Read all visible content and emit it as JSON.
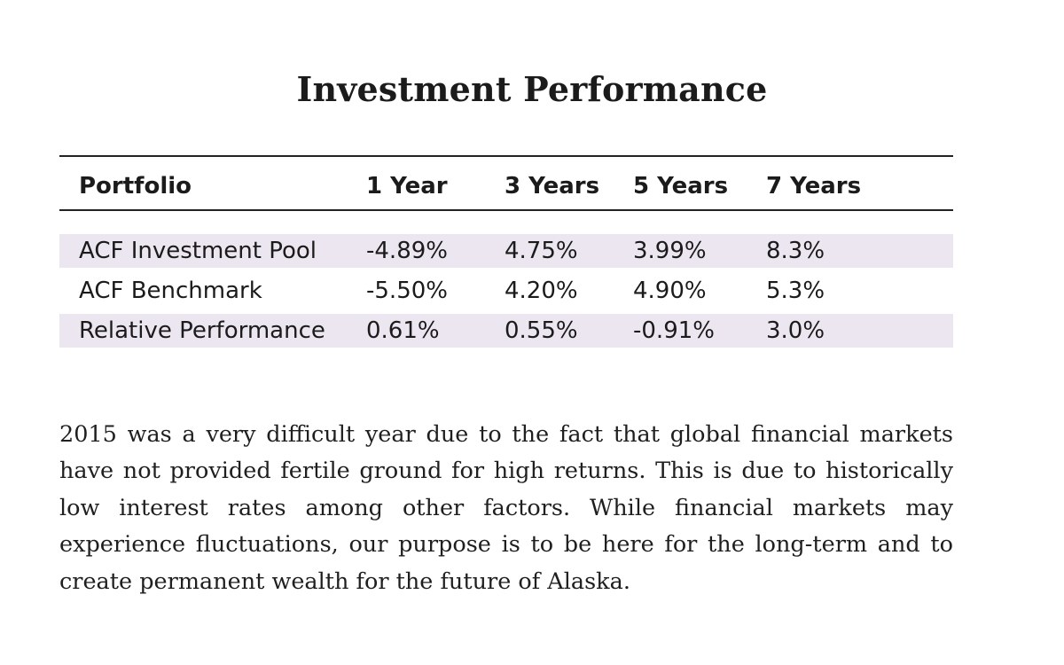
{
  "title": "Investment Performance",
  "table": {
    "headers": [
      "Portfolio",
      "1 Year",
      "3 Years",
      "5 Years",
      "7 Years"
    ],
    "rows": [
      [
        "ACF Investment Pool",
        "-4.89%",
        "4.75%",
        "3.99%",
        "8.3%"
      ],
      [
        "ACF Benchmark",
        "-5.50%",
        "4.20%",
        "4.90%",
        "5.3%"
      ],
      [
        "Relative Performance",
        "0.61%",
        "0.55%",
        "-0.91%",
        "3.0%"
      ]
    ]
  },
  "paragraph": "2015 was a very difficult year due to the fact that global financial markets have not provided fertile ground for high returns. This is due to historically low interest rates among other factors. While financial markets may experience fluctuations, our purpose is to be here for the long-term and to create permanent wealth for the future of Alaska.",
  "colors": {
    "text": "#1b1b1b",
    "row_shade": "#ebe6ef",
    "rule": "#222222"
  }
}
